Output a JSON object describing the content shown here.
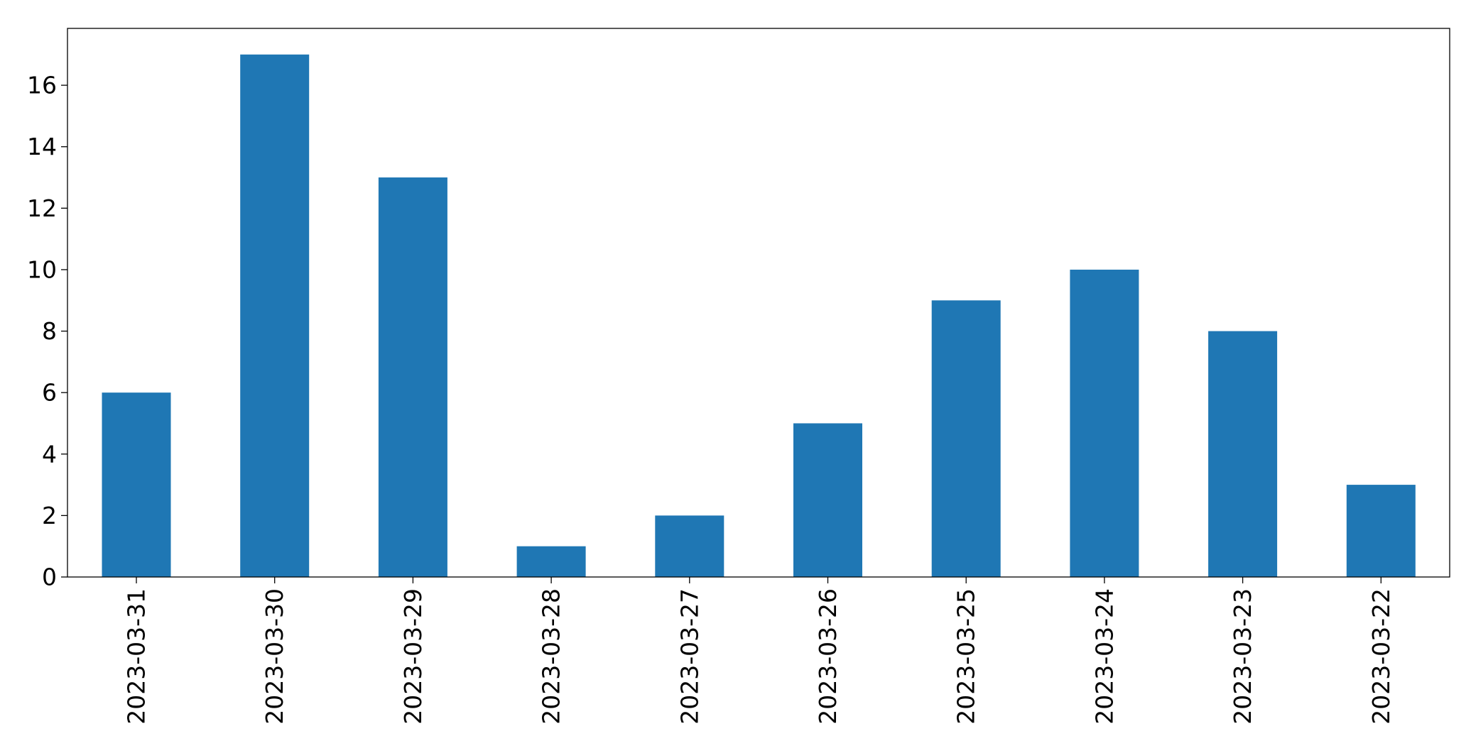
{
  "chart_data": {
    "type": "bar",
    "categories": [
      "2023-03-31",
      "2023-03-30",
      "2023-03-29",
      "2023-03-28",
      "2023-03-27",
      "2023-03-26",
      "2023-03-25",
      "2023-03-24",
      "2023-03-23",
      "2023-03-22"
    ],
    "values": [
      6,
      17,
      13,
      1,
      2,
      5,
      9,
      10,
      8,
      3
    ],
    "title": "",
    "xlabel": "",
    "ylabel": "",
    "ylim": [
      0,
      17.85
    ],
    "yticks": [
      0,
      2,
      4,
      6,
      8,
      10,
      12,
      14,
      16
    ],
    "bar_color": "#1f77b4",
    "grid": false,
    "legend": "none",
    "x_tick_rotation": "vertical"
  }
}
